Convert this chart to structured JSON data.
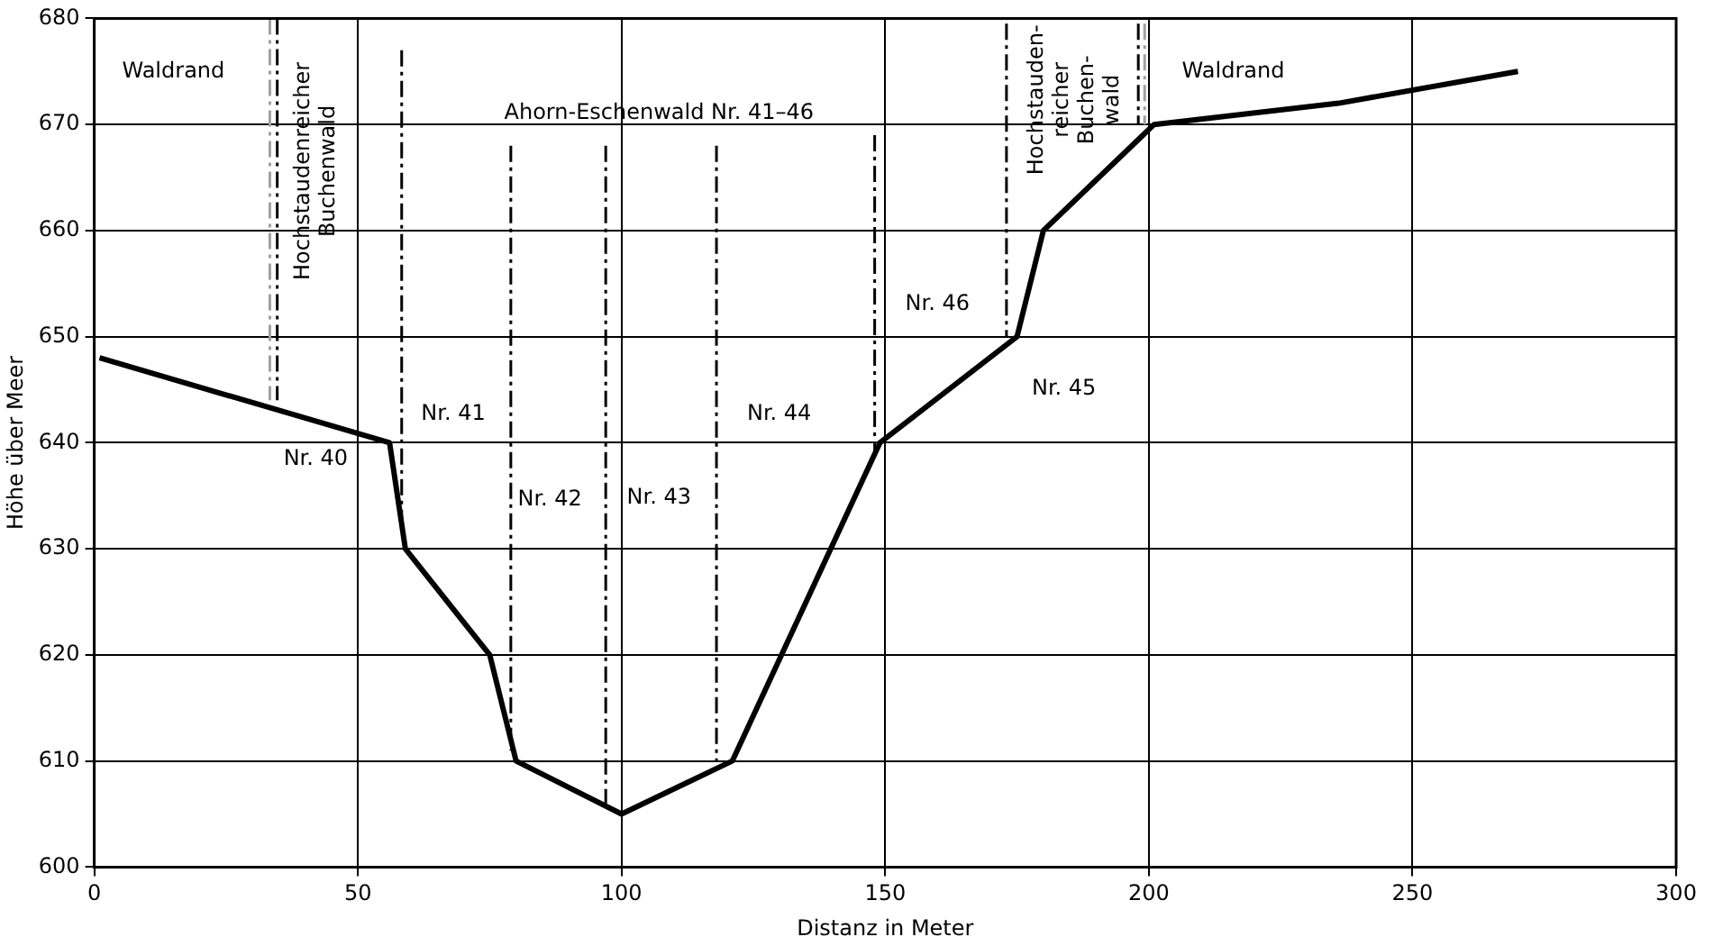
{
  "chart_data": {
    "type": "line",
    "xlabel": "Distanz in Meter",
    "ylabel": "Höhe über Meer",
    "xlim": [
      0,
      300
    ],
    "xticks": [
      0,
      50,
      100,
      150,
      200,
      250,
      300
    ],
    "ylim": [
      600,
      680
    ],
    "yticks": [
      600,
      610,
      620,
      630,
      640,
      650,
      660,
      670,
      680
    ],
    "grid": true,
    "legend": false,
    "marker": "none",
    "series": [
      {
        "color": "#000000",
        "x": [
          1,
          56,
          59,
          75,
          80,
          100,
          121,
          149,
          175,
          180,
          201,
          236,
          270
        ],
        "values": [
          648,
          640,
          630,
          620,
          610,
          605,
          610,
          640,
          650,
          660,
          670,
          672,
          675
        ]
      },
      {
        "color": "#a0a0a0",
        "line_style": "dashed",
        "x": [
          33.3,
          33.3
        ],
        "values": [
          680,
          644
        ]
      },
      {
        "color": "#000000",
        "line_style": "dashed",
        "x": [
          34.7,
          34.7
        ],
        "values": [
          680,
          644
        ]
      },
      {
        "color": "#000000",
        "line_style": "dashed",
        "x": [
          58.3,
          58.3
        ],
        "values": [
          677,
          632
        ]
      },
      {
        "color": "#000000",
        "line_style": "dashed",
        "x": [
          79,
          79
        ],
        "values": [
          668,
          611
        ]
      },
      {
        "color": "#000000",
        "line_style": "dashed",
        "x": [
          97,
          97
        ],
        "values": [
          668,
          606
        ]
      },
      {
        "color": "#000000",
        "line_style": "dashed",
        "x": [
          118,
          118
        ],
        "values": [
          668,
          610
        ]
      },
      {
        "color": "#000000",
        "line_style": "dashed",
        "x": [
          148,
          148
        ],
        "values": [
          669,
          639
        ]
      },
      {
        "color": "#000000",
        "line_style": "dashed",
        "x": [
          173,
          173
        ],
        "values": [
          679.5,
          650
        ]
      },
      {
        "color": "#000000",
        "line_style": "dashed",
        "x": [
          198,
          198
        ],
        "values": [
          679.5,
          670
        ]
      },
      {
        "color": "#a0a0a0",
        "line_style": "dashed",
        "x": [
          199.2,
          199.2
        ],
        "values": [
          679.5,
          670
        ]
      }
    ],
    "annotations": [
      "Waldrand",
      "Hochstaudenreicher\nBuchenwald",
      "Ahorn-Eschenwald Nr. 41–46",
      "Nr. 41",
      "Nr. 44",
      "Nr. 40",
      "Nr. 42",
      "Nr. 43",
      "Nr. 46",
      "Nr. 45",
      "Hochstauden-\nreicher\nBuchen-\nwald",
      "Waldrand"
    ]
  }
}
